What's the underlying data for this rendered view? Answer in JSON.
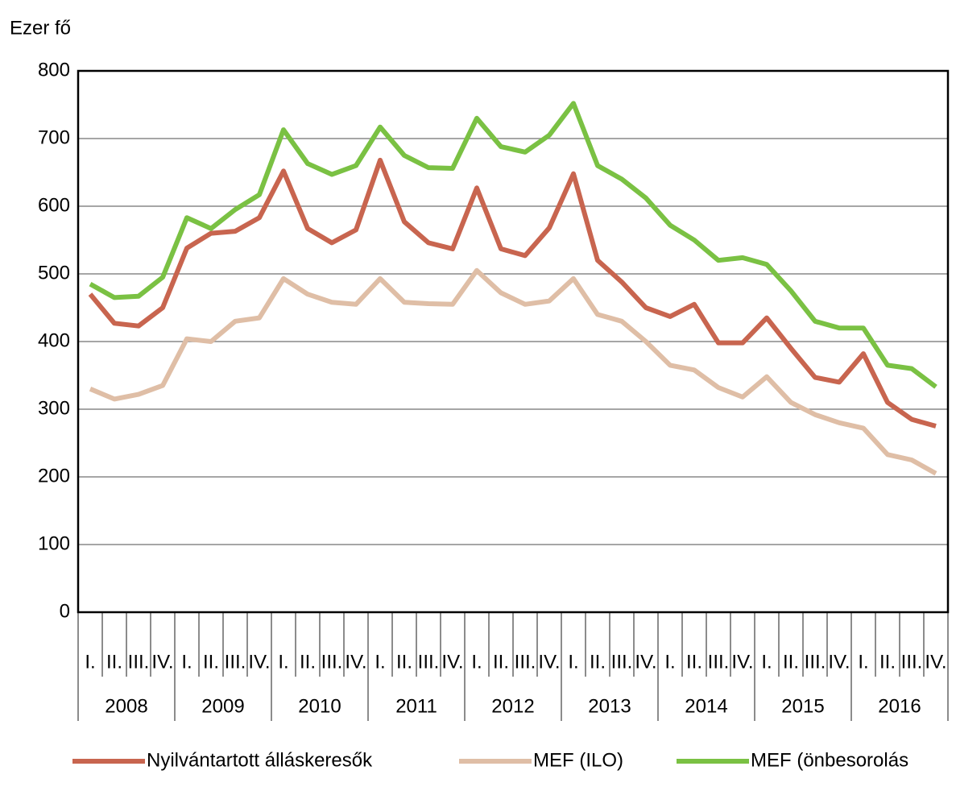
{
  "chart_data": {
    "type": "line",
    "y_label": "Ezer fő",
    "categories": [
      "I.",
      "II.",
      "III.",
      "IV.",
      "I.",
      "II.",
      "III.",
      "IV.",
      "I.",
      "II.",
      "III.",
      "IV.",
      "I.",
      "II.",
      "III.",
      "IV.",
      "I.",
      "II.",
      "III.",
      "IV.",
      "I.",
      "II.",
      "III.",
      "IV.",
      "I.",
      "II.",
      "III.",
      "IV.",
      "I.",
      "II.",
      "III.",
      "IV.",
      "I.",
      "II.",
      "III.",
      "IV."
    ],
    "groups": [
      "2008",
      "2009",
      "2010",
      "2011",
      "2012",
      "2013",
      "2014",
      "2015",
      "2016"
    ],
    "series": [
      {
        "name": "Nyilvántartott álláskeresők",
        "color": "#c8654f",
        "values": [
          470,
          427,
          423,
          450,
          538,
          560,
          563,
          583,
          652,
          567,
          546,
          565,
          668,
          577,
          546,
          537,
          627,
          537,
          527,
          568,
          648,
          520,
          488,
          450,
          437,
          455,
          398,
          398,
          435,
          390,
          347,
          340,
          382,
          310,
          285,
          275
        ]
      },
      {
        "name": "MEF (ILO)",
        "color": "#dfbea6",
        "values": [
          330,
          315,
          322,
          335,
          404,
          400,
          430,
          435,
          493,
          470,
          458,
          455,
          493,
          458,
          456,
          455,
          505,
          472,
          455,
          460,
          493,
          440,
          430,
          400,
          365,
          358,
          332,
          318,
          348,
          310,
          292,
          280,
          272,
          233,
          225,
          205
        ]
      },
      {
        "name": "MEF (önbesorolás",
        "color": "#7ac143",
        "values": [
          485,
          465,
          467,
          495,
          583,
          567,
          595,
          617,
          713,
          663,
          647,
          660,
          717,
          675,
          657,
          656,
          730,
          688,
          680,
          705,
          752,
          660,
          640,
          612,
          572,
          550,
          520,
          524,
          514,
          475,
          430,
          420,
          420,
          365,
          360,
          333
        ]
      }
    ],
    "ylim": [
      0,
      800
    ],
    "yticks": [
      0,
      100,
      200,
      300,
      400,
      500,
      600,
      700,
      800
    ],
    "grid": true
  }
}
